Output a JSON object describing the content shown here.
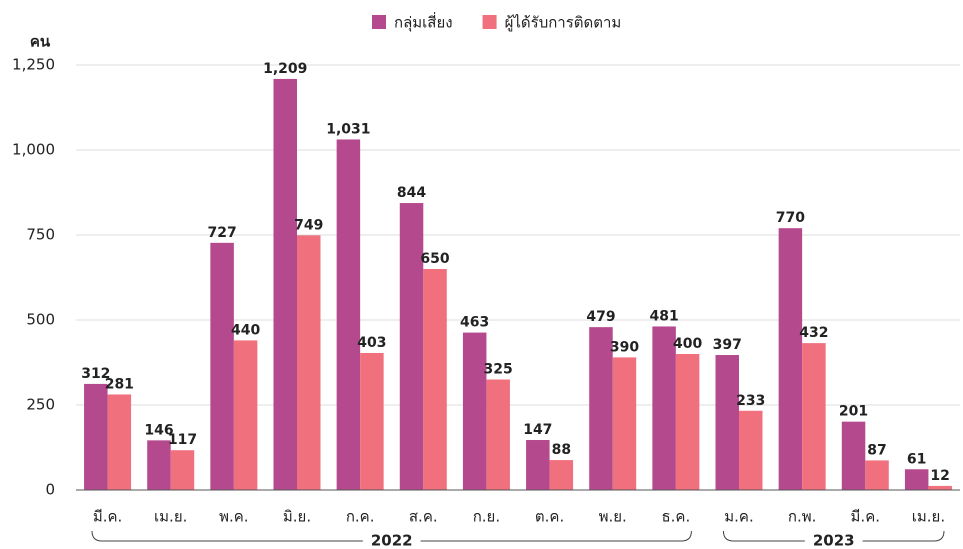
{
  "chart_data": {
    "type": "bar",
    "y_label": "คน",
    "categories": [
      "มี.ค.",
      "เม.ย.",
      "พ.ค.",
      "มิ.ย.",
      "ก.ค.",
      "ส.ค.",
      "ก.ย.",
      "ต.ค.",
      "พ.ย.",
      "ธ.ค.",
      "ม.ค.",
      "ก.พ.",
      "มี.ค.",
      "เม.ย."
    ],
    "groups": [
      {
        "label": "2022",
        "from": 0,
        "to": 9
      },
      {
        "label": "2023",
        "from": 10,
        "to": 13
      }
    ],
    "series": [
      {
        "name": "กลุ่มเสี่ยง",
        "color": "#b5498e",
        "values": [
          312,
          146,
          727,
          1209,
          1031,
          844,
          463,
          147,
          479,
          481,
          397,
          770,
          201,
          61
        ],
        "value_labels": [
          "312",
          "146",
          "727",
          "1,209",
          "1,031",
          "844",
          "463",
          "147",
          "479",
          "481",
          "397",
          "770",
          "201",
          "61"
        ]
      },
      {
        "name": "ผู้ได้รับการติดตาม",
        "color": "#f0707e",
        "values": [
          281,
          117,
          440,
          749,
          403,
          650,
          325,
          88,
          390,
          400,
          233,
          432,
          87,
          12
        ]
      }
    ],
    "ylim": [
      0,
      1250
    ],
    "yticks": [
      0,
      250,
      500,
      750,
      {
        "value": 1000,
        "label": "1,000"
      },
      {
        "value": 1250,
        "label": "1,250"
      }
    ],
    "grid": true,
    "legend": "top"
  }
}
